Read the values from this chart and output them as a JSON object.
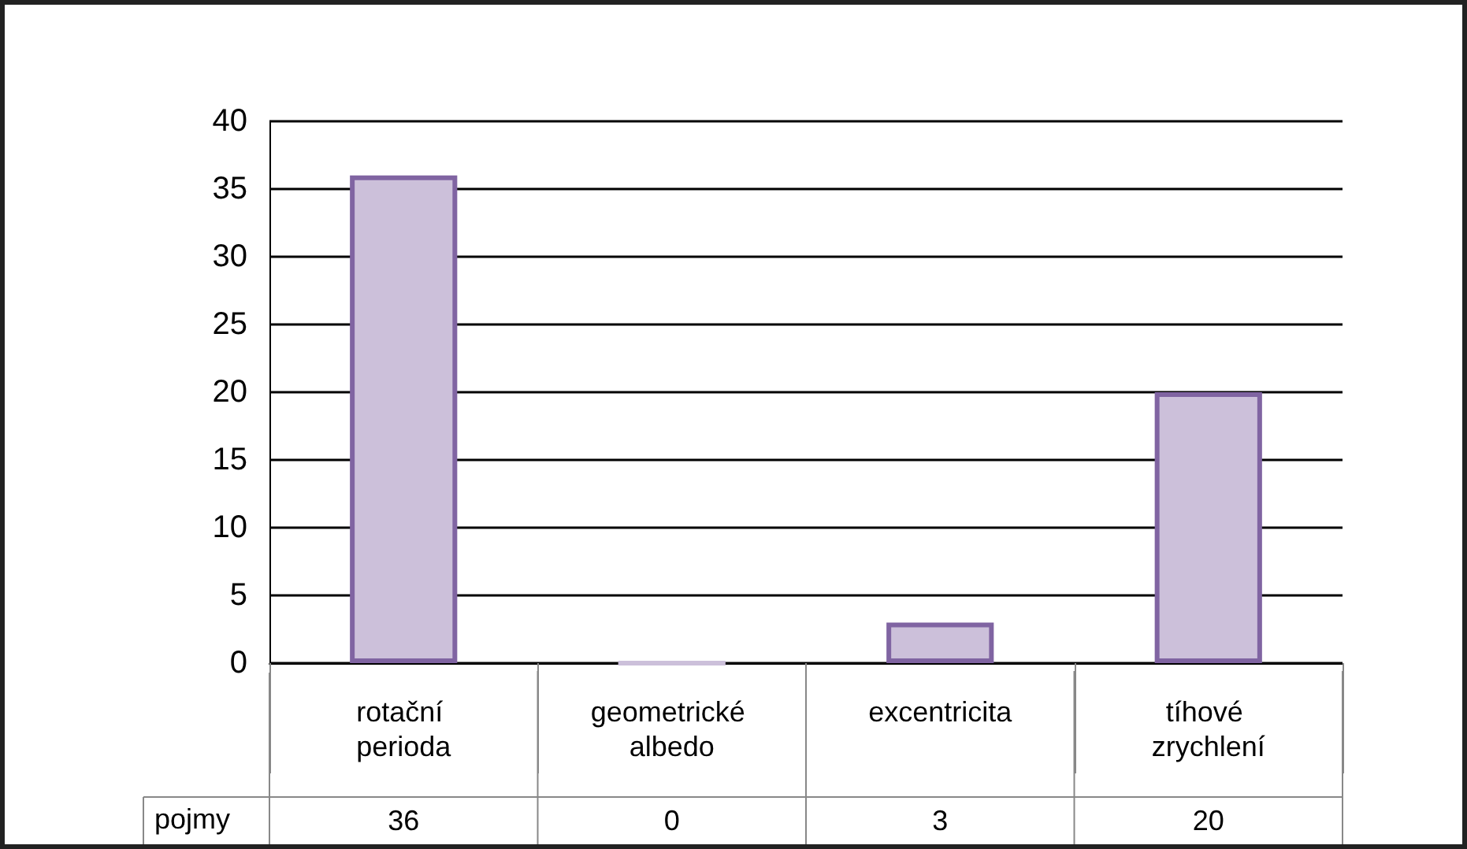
{
  "chart_data": {
    "type": "bar",
    "categories": [
      "rotační perioda",
      "geometrické albedo",
      "excentricita",
      "tíhové zrychlení"
    ],
    "series": [
      {
        "name": "pojmy",
        "color": "#ccc0da",
        "values": [
          36,
          0,
          3,
          20
        ]
      }
    ],
    "ylim": [
      0,
      40
    ],
    "yticks": [
      0,
      5,
      10,
      15,
      20,
      25,
      30,
      35,
      40
    ],
    "grid": "y",
    "data_labels": true,
    "legend": false
  }
}
